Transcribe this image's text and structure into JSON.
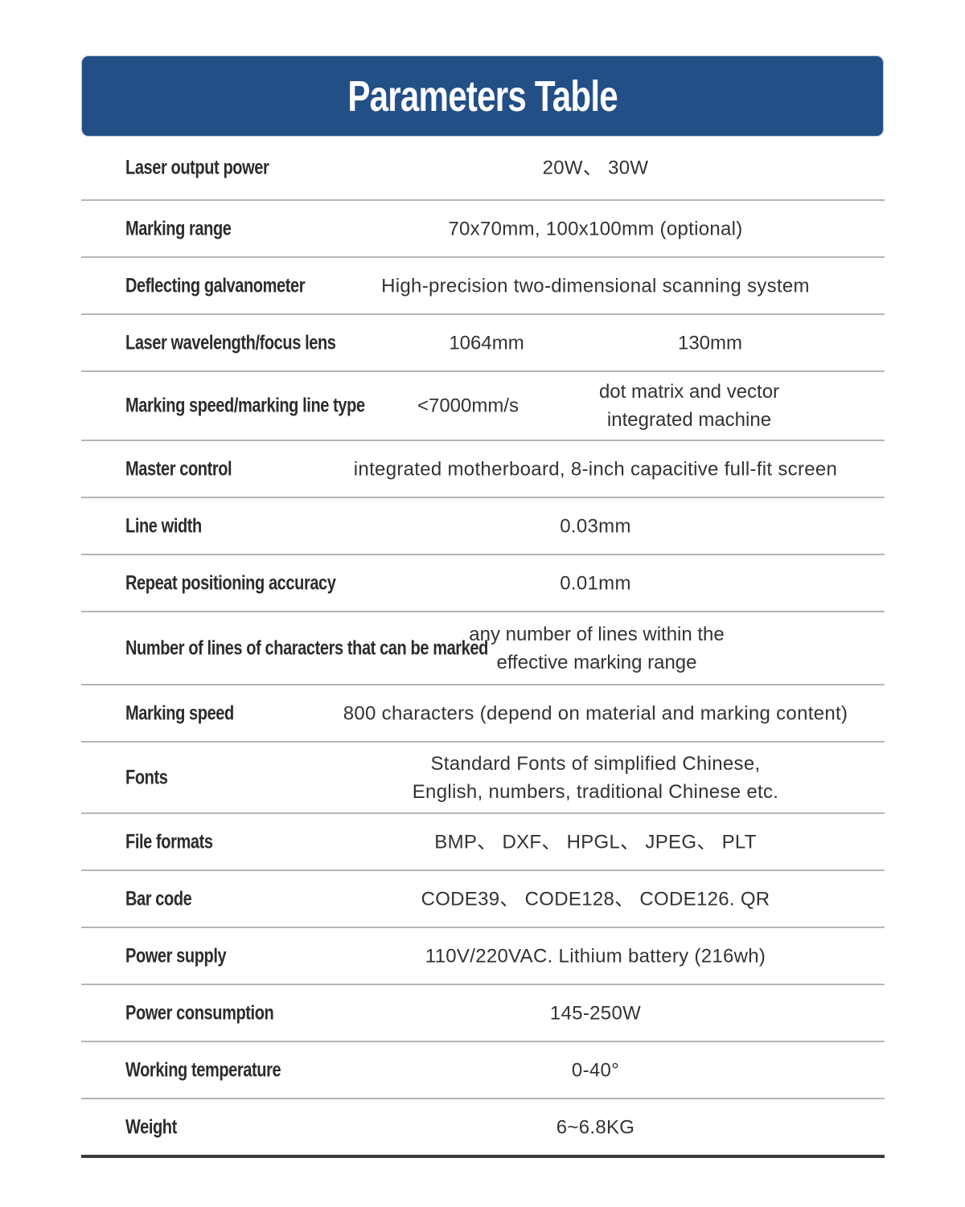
{
  "title": "Parameters Table",
  "rows": [
    {
      "label": "Laser output power",
      "value": "20W、 30W"
    },
    {
      "label": "Marking range",
      "value": "70x70mm, 100x100mm (optional)"
    },
    {
      "label": "Deflecting galvanometer",
      "value": "High-precision two-dimensional scanning system"
    },
    {
      "label": "Laser wavelength/focus lens",
      "value1": "1064mm",
      "value2": "130mm"
    },
    {
      "label": "Marking speed/marking line type",
      "value1": "<7000mm/s",
      "value2": "dot matrix and vector",
      "value2b": "integrated machine"
    },
    {
      "label": "Master control",
      "value": "integrated motherboard, 8-inch capacitive full-fit screen"
    },
    {
      "label": "Line width",
      "value": "0.03mm"
    },
    {
      "label": "Repeat positioning accuracy",
      "value": "0.01mm"
    },
    {
      "label": "Number of lines of characters that can be marked",
      "value": "any number of lines within the",
      "value_b": "effective marking range"
    },
    {
      "label": "Marking speed",
      "value": "800 characters (depend on material and marking content)"
    },
    {
      "label": "Fonts",
      "value": "Standard Fonts of simplified Chinese,",
      "value_b": "English, numbers, traditional Chinese etc."
    },
    {
      "label": "File formats",
      "value": "BMP、 DXF、 HPGL、 JPEG、 PLT"
    },
    {
      "label": "Bar code",
      "value": "CODE39、 CODE128、 CODE126. QR"
    },
    {
      "label": "Power supply",
      "value": "110V/220VAC.  Lithium battery (216wh)"
    },
    {
      "label": "Power consumption",
      "value": "145-250W"
    },
    {
      "label": "Working temperature",
      "value": "0-40°"
    },
    {
      "label": "Weight",
      "value": "6~6.8KG"
    }
  ]
}
